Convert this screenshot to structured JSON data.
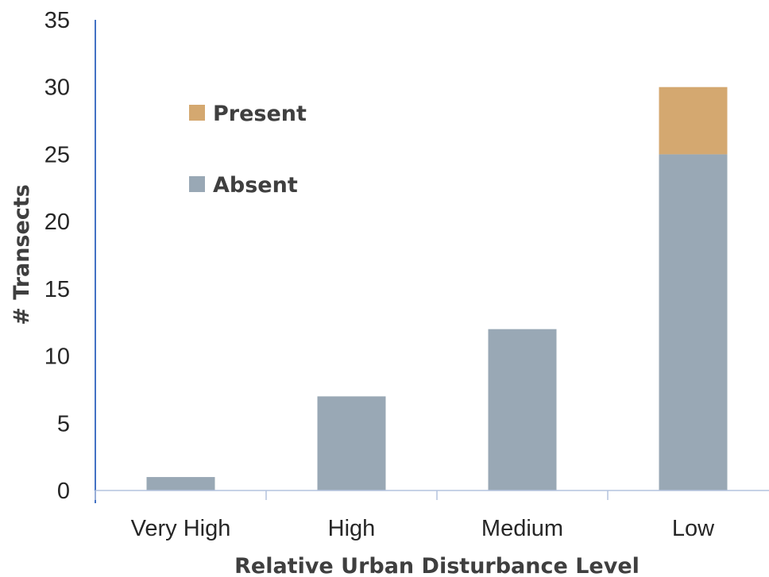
{
  "chart_data": {
    "type": "bar",
    "stacked": true,
    "categories": [
      "Very High",
      "High",
      "Medium",
      "Low"
    ],
    "series": [
      {
        "name": "Absent",
        "values": [
          1,
          7,
          12,
          25
        ],
        "color": "#99a8b5"
      },
      {
        "name": "Present",
        "values": [
          0,
          0,
          0,
          5
        ],
        "color": "#d4a870"
      }
    ],
    "xlabel": "Relative Urban Disturbance Level",
    "ylabel": "# Transects",
    "ylim": [
      0,
      35
    ],
    "yticks": [
      "0",
      "5",
      "10",
      "15",
      "20",
      "25",
      "30",
      "35"
    ],
    "legend": {
      "placement": "top-left",
      "entries": [
        "Present",
        "Absent"
      ]
    },
    "grid": false,
    "colors": {
      "axis": "#4472c4",
      "tick_label": "#262626",
      "axis_title": "#3f3f3f"
    }
  }
}
